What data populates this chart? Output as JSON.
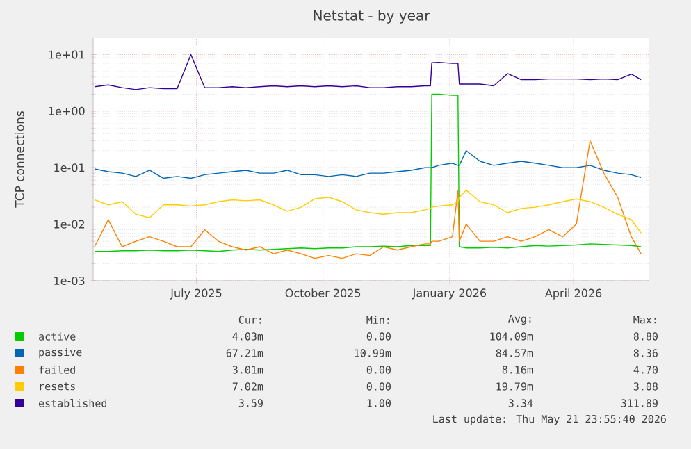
{
  "chart_data": {
    "type": "line",
    "title": "Netstat - by year",
    "ylabel": "TCP connections",
    "log": "y",
    "grid": true,
    "legend": "bottom",
    "xlim": [
      "2025-04-17",
      "2026-05-26"
    ],
    "xticks": [
      {
        "value": "2025-07-01",
        "label": "July 2025"
      },
      {
        "value": "2025-10-01",
        "label": "October 2025"
      },
      {
        "value": "2026-01-01",
        "label": "January 2026"
      },
      {
        "value": "2026-04-01",
        "label": "April 2026"
      }
    ],
    "ylim": [
      0.001,
      20
    ],
    "yticks": [
      {
        "value": 0.001,
        "label": "1e-03"
      },
      {
        "value": 0.01,
        "label": "1e-02"
      },
      {
        "value": 0.1,
        "label": "1e-01"
      },
      {
        "value": 1,
        "label": "1e+00"
      },
      {
        "value": 10,
        "label": "1e+01"
      }
    ],
    "x": [
      "2025-04-18",
      "2025-04-28",
      "2025-05-08",
      "2025-05-18",
      "2025-05-28",
      "2025-06-07",
      "2025-06-17",
      "2025-06-27",
      "2025-07-07",
      "2025-07-17",
      "2025-07-27",
      "2025-08-06",
      "2025-08-16",
      "2025-08-26",
      "2025-09-05",
      "2025-09-15",
      "2025-09-25",
      "2025-10-05",
      "2025-10-15",
      "2025-10-25",
      "2025-11-04",
      "2025-11-14",
      "2025-11-24",
      "2025-12-04",
      "2025-12-14",
      "2025-12-18",
      "2025-12-19",
      "2025-12-24",
      "2026-01-03",
      "2026-01-07",
      "2026-01-08",
      "2026-01-13",
      "2026-01-23",
      "2026-02-02",
      "2026-02-12",
      "2026-02-22",
      "2026-03-04",
      "2026-03-14",
      "2026-03-24",
      "2026-04-03",
      "2026-04-13",
      "2026-04-23",
      "2026-05-03",
      "2026-05-13",
      "2026-05-20"
    ],
    "series": [
      {
        "name": "active",
        "color": "#00cc00",
        "values": [
          0.0033,
          0.0033,
          0.0034,
          0.0034,
          0.0035,
          0.0034,
          0.0034,
          0.0035,
          0.0034,
          0.0033,
          0.0035,
          0.0036,
          0.0035,
          0.0036,
          0.0037,
          0.0038,
          0.0037,
          0.0038,
          0.0038,
          0.004,
          0.004,
          0.0041,
          0.004,
          0.0042,
          0.0042,
          0.0042,
          2.0,
          2.0,
          1.9,
          1.9,
          0.004,
          0.0038,
          0.0038,
          0.0039,
          0.0038,
          0.004,
          0.0042,
          0.0041,
          0.0042,
          0.0043,
          0.0045,
          0.0044,
          0.0043,
          0.0042,
          0.004
        ]
      },
      {
        "name": "passive",
        "color": "#0066b3",
        "values": [
          0.095,
          0.085,
          0.08,
          0.07,
          0.09,
          0.065,
          0.07,
          0.065,
          0.075,
          0.08,
          0.085,
          0.09,
          0.08,
          0.08,
          0.09,
          0.075,
          0.075,
          0.07,
          0.075,
          0.07,
          0.08,
          0.08,
          0.085,
          0.09,
          0.1,
          0.1,
          0.1,
          0.11,
          0.12,
          0.11,
          0.11,
          0.2,
          0.13,
          0.11,
          0.12,
          0.13,
          0.12,
          0.11,
          0.1,
          0.1,
          0.11,
          0.09,
          0.08,
          0.075,
          0.067
        ]
      },
      {
        "name": "failed",
        "color": "#ff8000",
        "values": [
          0.004,
          0.012,
          0.004,
          0.005,
          0.006,
          0.005,
          0.004,
          0.004,
          0.008,
          0.005,
          0.004,
          0.0035,
          0.004,
          0.003,
          0.0035,
          0.003,
          0.0025,
          0.0028,
          0.0025,
          0.003,
          0.0028,
          0.004,
          0.0035,
          0.004,
          0.0045,
          0.0045,
          0.005,
          0.005,
          0.006,
          0.04,
          0.005,
          0.01,
          0.005,
          0.005,
          0.006,
          0.005,
          0.006,
          0.008,
          0.006,
          0.01,
          0.3,
          0.08,
          0.03,
          0.006,
          0.003
        ]
      },
      {
        "name": "resets",
        "color": "#ffcc00",
        "values": [
          0.027,
          0.022,
          0.025,
          0.015,
          0.013,
          0.022,
          0.022,
          0.021,
          0.022,
          0.025,
          0.027,
          0.026,
          0.027,
          0.022,
          0.017,
          0.02,
          0.028,
          0.03,
          0.025,
          0.018,
          0.016,
          0.015,
          0.016,
          0.016,
          0.018,
          0.019,
          0.02,
          0.021,
          0.022,
          0.025,
          0.03,
          0.04,
          0.025,
          0.022,
          0.016,
          0.019,
          0.02,
          0.022,
          0.025,
          0.028,
          0.025,
          0.02,
          0.015,
          0.012,
          0.007
        ]
      },
      {
        "name": "established",
        "color": "#330099",
        "values": [
          2.7,
          2.9,
          2.6,
          2.4,
          2.6,
          2.5,
          2.5,
          10,
          2.6,
          2.6,
          2.7,
          2.6,
          2.7,
          2.8,
          2.7,
          2.8,
          2.7,
          2.8,
          2.7,
          2.8,
          2.6,
          2.6,
          2.7,
          2.7,
          2.8,
          2.8,
          7.2,
          7.3,
          7.0,
          7.0,
          3.0,
          3.0,
          3.0,
          2.8,
          4.6,
          3.6,
          3.6,
          3.7,
          3.7,
          3.7,
          3.6,
          3.7,
          3.6,
          4.5,
          3.6
        ]
      }
    ],
    "annotations": [
      "Cur:",
      "Min:",
      "Avg:",
      "Max:",
      "4.03m",
      "0.00",
      "104.09m",
      "8.80",
      "67.21m",
      "10.99m",
      "84.57m",
      "8.36",
      "3.01m",
      "0.00",
      "8.16m",
      "4.70",
      "7.02m",
      "0.00",
      "19.79m",
      "3.08",
      "3.59",
      "1.00",
      "3.34",
      "311.89",
      "Last update: Thu May 21 23:55:40 2026"
    ]
  }
}
